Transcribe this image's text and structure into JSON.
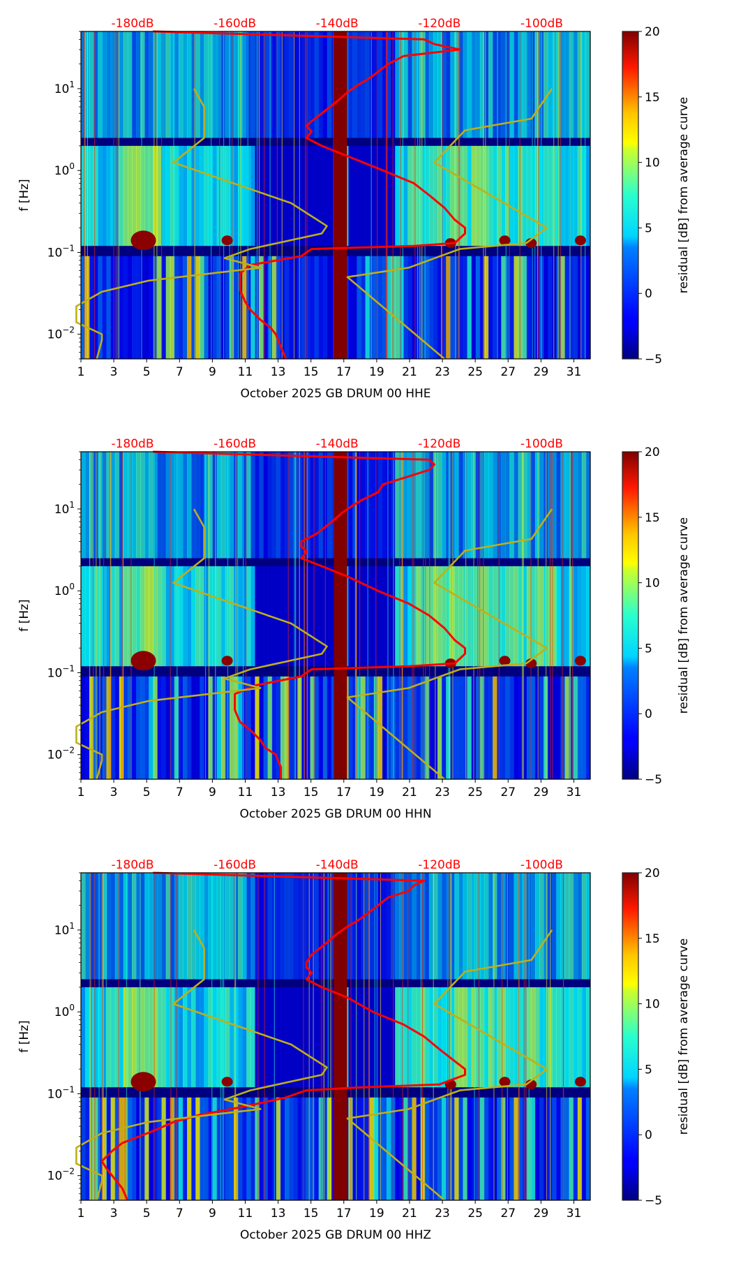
{
  "chart_data": [
    {
      "type": "heatmap",
      "title": "",
      "xlabel": "October 2025 GB DRUM 00 HHE",
      "ylabel": "f [Hz]",
      "x_ticks": [
        "1",
        "3",
        "5",
        "7",
        "9",
        "11",
        "13",
        "15",
        "17",
        "19",
        "21",
        "23",
        "25",
        "27",
        "29",
        "31"
      ],
      "x_tick_values": [
        1,
        3,
        5,
        7,
        9,
        11,
        13,
        15,
        17,
        19,
        21,
        23,
        25,
        27,
        29,
        31
      ],
      "xlim": [
        1,
        32
      ],
      "y_scale": "log",
      "ylim": [
        0.005,
        50
      ],
      "y_ticks": [
        "10^1",
        "10^0",
        "10^-1",
        "10^-2"
      ],
      "y_tick_values": [
        10,
        1,
        0.1,
        0.01
      ],
      "top_axis": {
        "labels": [
          "-180dB",
          "-160dB",
          "-140dB",
          "-120dB",
          "-100dB"
        ],
        "values": [
          -180,
          -160,
          -140,
          -120,
          -100
        ],
        "color": "#ff0000"
      },
      "colorbar": {
        "label": "residual [dB] from average curve",
        "ticks": [
          "20",
          "15",
          "10",
          "5",
          "0",
          "−5"
        ],
        "tick_values": [
          20,
          15,
          10,
          5,
          0,
          -5
        ],
        "range": [
          -5,
          20
        ],
        "colormap": "jet"
      },
      "data_gap_days": [
        16.4,
        17.2
      ],
      "series": [
        {
          "name": "mean PSD",
          "color": "#ff0000",
          "axis": "top_dB",
          "f": [
            50,
            40,
            35,
            30,
            25,
            20,
            16,
            13,
            11,
            9,
            7,
            5,
            4,
            3.5,
            3,
            2.5,
            2,
            1.5,
            1.0,
            0.7,
            0.5,
            0.35,
            0.25,
            0.2,
            0.17,
            0.13,
            0.12,
            0.11,
            0.1,
            0.09,
            0.07,
            0.055,
            0.045,
            0.035,
            0.025,
            0.02,
            0.015,
            0.012,
            0.01,
            0.007,
            0.005
          ],
          "db": [
            -176,
            -123,
            -121,
            -116,
            -127,
            -130,
            -132,
            -134,
            -136,
            -138,
            -140,
            -143,
            -145,
            -146,
            -145,
            -146,
            -143,
            -138,
            -131,
            -125,
            -122,
            -119,
            -117,
            -115,
            -115,
            -117,
            -125,
            -145,
            -146,
            -147,
            -157,
            -159,
            -159,
            -159,
            -158,
            -157,
            -155,
            -153,
            -152,
            -151,
            -150
          ]
        },
        {
          "name": "NLNM",
          "color": "#bfb017",
          "axis": "top_dB",
          "f": [
            10,
            6,
            2.5,
            1.25,
            0.8,
            0.4,
            0.21,
            0.17,
            0.11,
            0.085,
            0.065,
            0.045,
            0.033,
            0.022,
            0.014,
            0.01,
            0.0085,
            0.005
          ],
          "db": [
            -168,
            -166,
            -166,
            -172,
            -163,
            -149,
            -142,
            -143,
            -157,
            -162,
            -155,
            -177,
            -186,
            -191,
            -191,
            -186,
            -186,
            -187
          ]
        },
        {
          "name": "NHNM",
          "color": "#bfb017",
          "axis": "top_dB",
          "f": [
            10,
            4.3,
            3.1,
            1.25,
            0.2,
            0.13,
            0.11,
            0.065,
            0.05,
            0.005
          ],
          "db": [
            -98,
            -102,
            -115,
            -121,
            -99,
            -103,
            -116,
            -126,
            -138,
            -119
          ]
        }
      ]
    },
    {
      "type": "heatmap",
      "title": "",
      "xlabel": "October 2025 GB DRUM 00 HHN",
      "ylabel": "f [Hz]",
      "x_ticks": [
        "1",
        "3",
        "5",
        "7",
        "9",
        "11",
        "13",
        "15",
        "17",
        "19",
        "21",
        "23",
        "25",
        "27",
        "29",
        "31"
      ],
      "x_tick_values": [
        1,
        3,
        5,
        7,
        9,
        11,
        13,
        15,
        17,
        19,
        21,
        23,
        25,
        27,
        29,
        31
      ],
      "xlim": [
        1,
        32
      ],
      "y_scale": "log",
      "ylim": [
        0.005,
        50
      ],
      "y_ticks": [
        "10^1",
        "10^0",
        "10^-1",
        "10^-2"
      ],
      "y_tick_values": [
        10,
        1,
        0.1,
        0.01
      ],
      "top_axis": {
        "labels": [
          "-180dB",
          "-160dB",
          "-140dB",
          "-120dB",
          "-100dB"
        ],
        "values": [
          -180,
          -160,
          -140,
          -120,
          -100
        ],
        "color": "#ff0000"
      },
      "colorbar": {
        "label": "residual [dB] from average curve",
        "ticks": [
          "20",
          "15",
          "10",
          "5",
          "0",
          "−5"
        ],
        "tick_values": [
          20,
          15,
          10,
          5,
          0,
          -5
        ],
        "range": [
          -5,
          20
        ],
        "colormap": "jet"
      },
      "data_gap_days": [
        16.4,
        17.2
      ],
      "series": [
        {
          "name": "mean PSD",
          "color": "#ff0000",
          "axis": "top_dB",
          "f": [
            50,
            40,
            35,
            30,
            25,
            20,
            16,
            13,
            11,
            9,
            7,
            5,
            4,
            3.5,
            3,
            2.5,
            2,
            1.5,
            1.0,
            0.7,
            0.5,
            0.35,
            0.25,
            0.2,
            0.17,
            0.13,
            0.12,
            0.11,
            0.1,
            0.09,
            0.07,
            0.055,
            0.045,
            0.035,
            0.025,
            0.02,
            0.015,
            0.012,
            0.01,
            0.007,
            0.005
          ],
          "db": [
            -176,
            -122,
            -121,
            -122,
            -126,
            -131,
            -132,
            -135,
            -137,
            -139,
            -141,
            -144,
            -147,
            -147,
            -146,
            -147,
            -143,
            -138,
            -132,
            -126,
            -122,
            -119,
            -117,
            -115,
            -115,
            -117,
            -126,
            -145,
            -146,
            -147,
            -156,
            -160,
            -160,
            -160,
            -159,
            -157,
            -155,
            -154,
            -152,
            -151,
            -151
          ]
        },
        {
          "name": "NLNM",
          "color": "#bfb017",
          "axis": "top_dB",
          "f": [
            10,
            6,
            2.5,
            1.25,
            0.8,
            0.4,
            0.21,
            0.17,
            0.11,
            0.085,
            0.065,
            0.045,
            0.033,
            0.022,
            0.014,
            0.01,
            0.0085,
            0.005
          ],
          "db": [
            -168,
            -166,
            -166,
            -172,
            -163,
            -149,
            -142,
            -143,
            -157,
            -162,
            -155,
            -177,
            -186,
            -191,
            -191,
            -186,
            -186,
            -187
          ]
        },
        {
          "name": "NHNM",
          "color": "#bfb017",
          "axis": "top_dB",
          "f": [
            10,
            4.3,
            3.1,
            1.25,
            0.2,
            0.13,
            0.11,
            0.065,
            0.05,
            0.005
          ],
          "db": [
            -98,
            -102,
            -115,
            -121,
            -99,
            -103,
            -116,
            -126,
            -138,
            -119
          ]
        }
      ]
    },
    {
      "type": "heatmap",
      "title": "",
      "xlabel": "October 2025 GB DRUM 00 HHZ",
      "ylabel": "f [Hz]",
      "x_ticks": [
        "1",
        "3",
        "5",
        "7",
        "9",
        "11",
        "13",
        "15",
        "17",
        "19",
        "21",
        "23",
        "25",
        "27",
        "29",
        "31"
      ],
      "x_tick_values": [
        1,
        3,
        5,
        7,
        9,
        11,
        13,
        15,
        17,
        19,
        21,
        23,
        25,
        27,
        29,
        31
      ],
      "xlim": [
        1,
        32
      ],
      "y_scale": "log",
      "ylim": [
        0.005,
        50
      ],
      "y_ticks": [
        "10^1",
        "10^0",
        "10^-1",
        "10^-2"
      ],
      "y_tick_values": [
        10,
        1,
        0.1,
        0.01
      ],
      "top_axis": {
        "labels": [
          "-180dB",
          "-160dB",
          "-140dB",
          "-120dB",
          "-100dB"
        ],
        "values": [
          -180,
          -160,
          -140,
          -120,
          -100
        ],
        "color": "#ff0000"
      },
      "colorbar": {
        "label": "residual [dB] from average curve",
        "ticks": [
          "20",
          "15",
          "10",
          "5",
          "0",
          "−5"
        ],
        "tick_values": [
          20,
          15,
          10,
          5,
          0,
          -5
        ],
        "range": [
          -5,
          20
        ],
        "colormap": "jet"
      },
      "data_gap_days": [
        16.4,
        17.2
      ],
      "series": [
        {
          "name": "mean PSD",
          "color": "#ff0000",
          "axis": "top_dB",
          "f": [
            50,
            40,
            35,
            30,
            25,
            20,
            16,
            13,
            11,
            9,
            7,
            5,
            4,
            3.5,
            3,
            2.5,
            2,
            1.5,
            1.0,
            0.7,
            0.5,
            0.35,
            0.25,
            0.2,
            0.17,
            0.13,
            0.12,
            0.11,
            0.1,
            0.09,
            0.07,
            0.055,
            0.045,
            0.035,
            0.025,
            0.02,
            0.015,
            0.012,
            0.01,
            0.007,
            0.005
          ],
          "db": [
            -176,
            -123,
            -125,
            -126,
            -130,
            -132,
            -134,
            -136,
            -138,
            -140,
            -142,
            -145,
            -146,
            -146,
            -145,
            -146,
            -143,
            -138,
            -133,
            -127,
            -123,
            -120,
            -117,
            -115,
            -115,
            -120,
            -135,
            -146,
            -148,
            -150,
            -158,
            -167,
            -172,
            -176,
            -182,
            -184,
            -186,
            -185,
            -184,
            -182,
            -181
          ]
        },
        {
          "name": "NLNM",
          "color": "#bfb017",
          "axis": "top_dB",
          "f": [
            10,
            6,
            2.5,
            1.25,
            0.8,
            0.4,
            0.21,
            0.17,
            0.11,
            0.085,
            0.065,
            0.045,
            0.033,
            0.022,
            0.014,
            0.01,
            0.0085,
            0.005
          ],
          "db": [
            -168,
            -166,
            -166,
            -172,
            -163,
            -149,
            -142,
            -143,
            -157,
            -162,
            -155,
            -177,
            -186,
            -191,
            -191,
            -186,
            -186,
            -187
          ]
        },
        {
          "name": "NHNM",
          "color": "#bfb017",
          "axis": "top_dB",
          "f": [
            10,
            4.3,
            3.1,
            1.25,
            0.2,
            0.13,
            0.11,
            0.065,
            0.05,
            0.005
          ],
          "db": [
            -98,
            -102,
            -115,
            -121,
            -99,
            -103,
            -116,
            -126,
            -138,
            -119
          ]
        }
      ]
    }
  ]
}
